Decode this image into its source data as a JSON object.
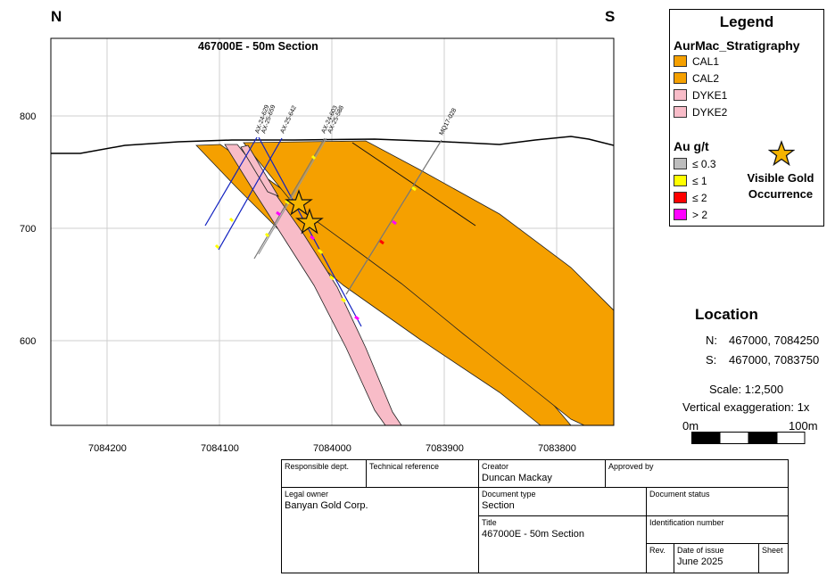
{
  "compass": {
    "north": "N",
    "south": "S"
  },
  "section_title": "467000E - 50m Section",
  "axes": {
    "elevation_ticks": [
      "800",
      "700",
      "600"
    ],
    "northing_ticks": [
      "7084200",
      "7084100",
      "7084000",
      "7083900",
      "7083800"
    ]
  },
  "drillholes": [
    {
      "name": "AX-24-629"
    },
    {
      "name": "AX-25-659"
    },
    {
      "name": "AX-25-642"
    },
    {
      "name": "AX-24-603"
    },
    {
      "name": "AX-25-588"
    },
    {
      "name": "MQ17-028"
    }
  ],
  "legend": {
    "title": "Legend",
    "stratigraphy_title": "AurMac_Stratigraphy",
    "strat_items": [
      {
        "label": "CAL1",
        "color": "#f5a000"
      },
      {
        "label": "CAL2",
        "color": "#f5a000"
      },
      {
        "label": "DYKE1",
        "color": "#f8bcc8"
      },
      {
        "label": "DYKE2",
        "color": "#f8bcc8"
      }
    ],
    "au_title": "Au g/t",
    "au_items": [
      {
        "label": "≤ 0.3",
        "color": "#bdbdbd"
      },
      {
        "label": "≤ 1",
        "color": "#ffff00"
      },
      {
        "label": "≤ 2",
        "color": "#ff0000"
      },
      {
        "label": "> 2",
        "color": "#ff00ff"
      }
    ],
    "visible_gold": "Visible Gold Occurrence",
    "star_color": "#f5b400"
  },
  "location": {
    "title": "Location",
    "n_label": "N:",
    "n_value": "467000, 7084250",
    "s_label": "S:",
    "s_value": "467000, 7083750"
  },
  "scale": {
    "text": "Scale: 1:2,500",
    "vertical": "Vertical exaggeration: 1x",
    "bar_start": "0m",
    "bar_end": "100m"
  },
  "title_block": {
    "responsible_dept_label": "Responsible dept.",
    "technical_reference_label": "Technical reference",
    "creator_label": "Creator",
    "creator_value": "Duncan Mackay",
    "approved_by_label": "Approved by",
    "legal_owner_label": "Legal owner",
    "legal_owner_value": "Banyan Gold Corp.",
    "document_type_label": "Document type",
    "document_type_value": "Section",
    "document_status_label": "Document status",
    "title_label": "Title",
    "title_value": "467000E - 50m Section",
    "identification_label": "Identification number",
    "rev_label": "Rev.",
    "date_label": "Date of issue",
    "date_value": "June 2025",
    "sheet_label": "Sheet"
  }
}
